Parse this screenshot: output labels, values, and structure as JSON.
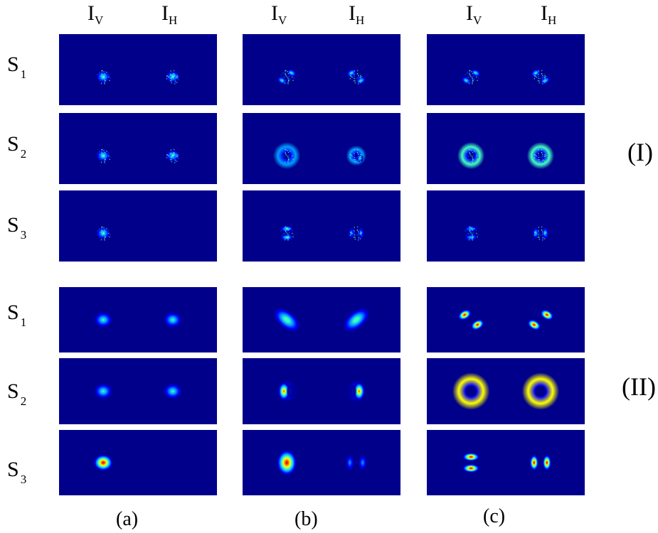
{
  "headers": {
    "iv_main": "I",
    "iv_sub": "V",
    "ih_main": "I",
    "ih_sub": "H"
  },
  "row_labels": [
    {
      "main": "S",
      "sub": "1"
    },
    {
      "main": "S",
      "sub": "2"
    },
    {
      "main": "S",
      "sub": "3"
    }
  ],
  "group_labels": [
    "(I)",
    "(II)"
  ],
  "column_labels": [
    "(a)",
    "(b)",
    "(c)"
  ],
  "colors": {
    "background": "#00008b",
    "colormap": [
      "#00008b",
      "#0000ff",
      "#00a0ff",
      "#40ffc0",
      "#ffff00",
      "#ff6000",
      "#c00000"
    ]
  },
  "panels": {
    "I": {
      "a": {
        "S1": {
          "IV": {
            "type": "gaussian",
            "intensity": 0.55,
            "speckle": true
          },
          "IH": {
            "type": "gaussian",
            "intensity": 0.55,
            "speckle": true
          }
        },
        "S2": {
          "IV": {
            "type": "gaussian",
            "intensity": 0.55,
            "speckle": true
          },
          "IH": {
            "type": "gaussian",
            "intensity": 0.55,
            "speckle": true
          }
        },
        "S3": {
          "IV": {
            "type": "gaussian",
            "intensity": 0.55,
            "speckle": true
          },
          "IH": {
            "type": "empty"
          }
        }
      },
      "b": {
        "S1": {
          "IV": {
            "type": "diagonal-two-lobe",
            "orientation": "anti",
            "intensity": 0.5,
            "speckle": true
          },
          "IH": {
            "type": "diagonal-two-lobe",
            "orientation": "main",
            "intensity": 0.5,
            "speckle": true
          }
        },
        "S2": {
          "IV": {
            "type": "ring",
            "intensity": 0.3,
            "speckle": true
          },
          "IH": {
            "type": "asymmetric-ring",
            "intensity": 0.5,
            "speckle": true
          }
        },
        "S3": {
          "IV": {
            "type": "vertical-two-lobe",
            "intensity": 0.55,
            "speckle": true
          },
          "IH": {
            "type": "horizontal-two-lobe",
            "intensity": 0.35,
            "speckle": true
          }
        }
      },
      "c": {
        "S1": {
          "IV": {
            "type": "diagonal-two-lobe",
            "orientation": "anti",
            "intensity": 0.5,
            "speckle": true
          },
          "IH": {
            "type": "diagonal-two-lobe",
            "orientation": "main",
            "intensity": 0.5,
            "speckle": true
          }
        },
        "S2": {
          "IV": {
            "type": "ring",
            "intensity": 0.55,
            "speckle": true
          },
          "IH": {
            "type": "ring",
            "intensity": 0.55,
            "speckle": true
          }
        },
        "S3": {
          "IV": {
            "type": "vertical-two-lobe",
            "intensity": 0.45,
            "speckle": true
          },
          "IH": {
            "type": "horizontal-two-lobe",
            "intensity": 0.45,
            "speckle": true
          }
        }
      }
    },
    "II": {
      "a": {
        "S1": {
          "IV": {
            "type": "gaussian",
            "intensity": 0.5
          },
          "IH": {
            "type": "gaussian",
            "intensity": 0.5
          }
        },
        "S2": {
          "IV": {
            "type": "gaussian",
            "intensity": 0.5
          },
          "IH": {
            "type": "gaussian",
            "intensity": 0.5
          }
        },
        "S3": {
          "IV": {
            "type": "gaussian",
            "intensity": 1.0
          },
          "IH": {
            "type": "empty"
          }
        }
      },
      "b": {
        "S1": {
          "IV": {
            "type": "elongated-diagonal",
            "orientation": "main",
            "intensity": 0.6
          },
          "IH": {
            "type": "elongated-diagonal",
            "orientation": "anti",
            "intensity": 0.6
          }
        },
        "S2": {
          "IV": {
            "type": "crescent",
            "side": "left",
            "intensity": 0.85
          },
          "IH": {
            "type": "crescent",
            "side": "right",
            "intensity": 0.85
          }
        },
        "S3": {
          "IV": {
            "type": "gaussian-tall",
            "intensity": 1.0
          },
          "IH": {
            "type": "horizontal-two-lobe",
            "intensity": 0.35
          }
        }
      },
      "c": {
        "S1": {
          "IV": {
            "type": "diagonal-two-lobe",
            "orientation": "main",
            "intensity": 1.0
          },
          "IH": {
            "type": "diagonal-two-lobe",
            "orientation": "anti",
            "intensity": 1.0
          }
        },
        "S2": {
          "IV": {
            "type": "ring",
            "intensity": 0.6
          },
          "IH": {
            "type": "ring",
            "intensity": 0.6
          }
        },
        "S3": {
          "IV": {
            "type": "vertical-two-lobe",
            "intensity": 1.0
          },
          "IH": {
            "type": "horizontal-two-lobe",
            "intensity": 1.0
          }
        }
      }
    }
  }
}
